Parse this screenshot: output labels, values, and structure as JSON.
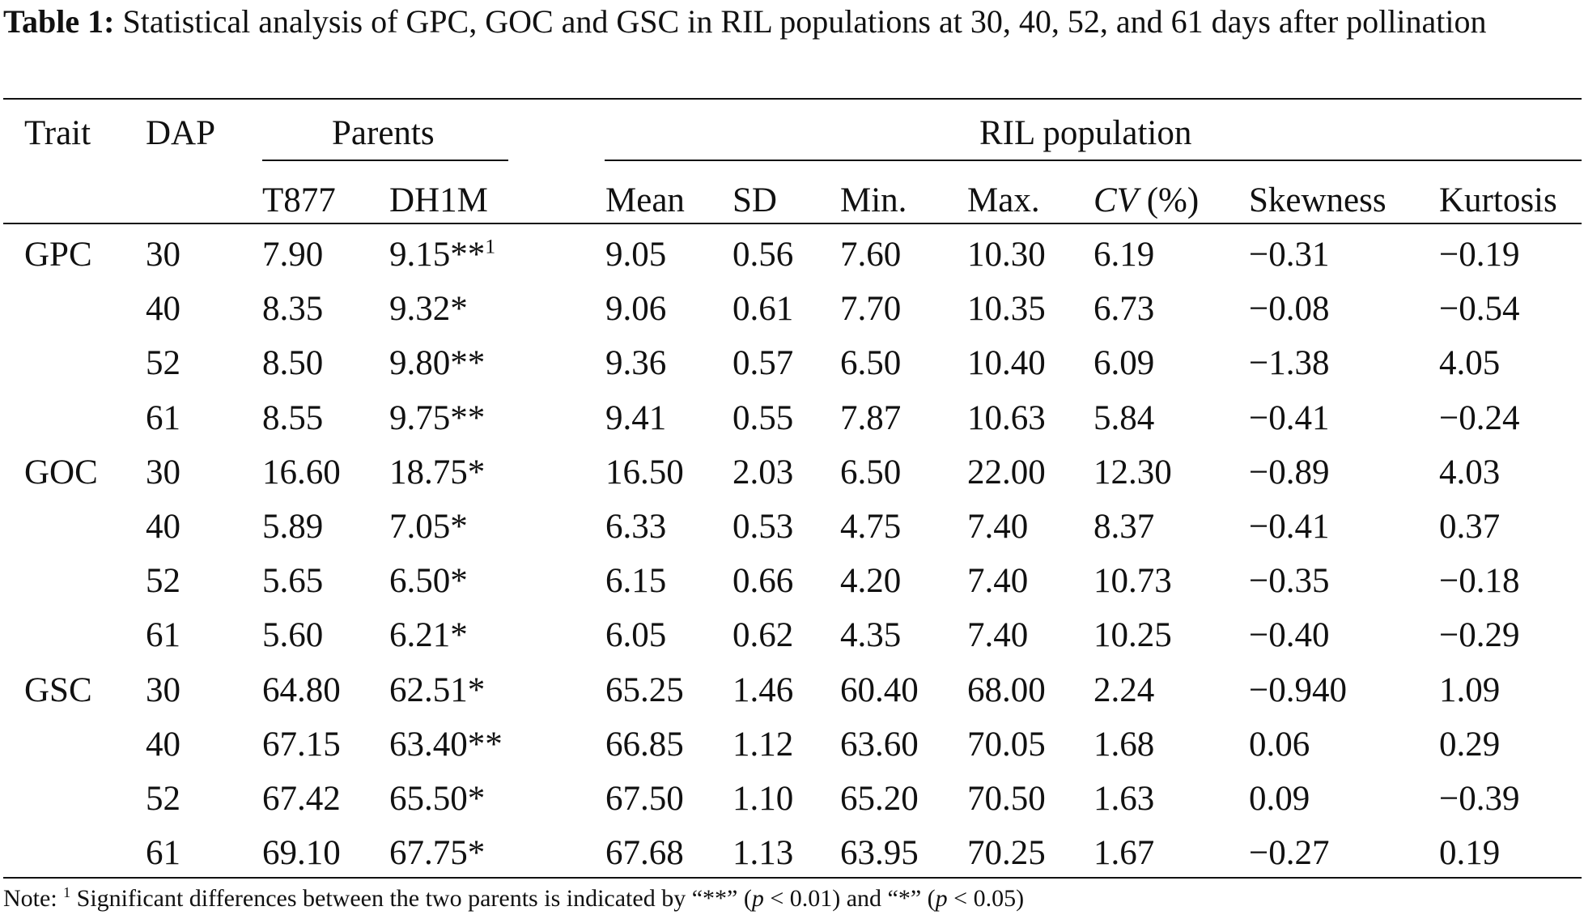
{
  "caption": {
    "label": "Table 1:",
    "text": "Statistical analysis of GPC, GOC and GSC in RIL populations at 30, 40, 52, and 61 days after pollination"
  },
  "header": {
    "trait": "Trait",
    "dap": "DAP",
    "parents": "Parents",
    "ril_population": "RIL population",
    "t877": "T877",
    "dh1m": "DH1M",
    "mean": "Mean",
    "sd": "SD",
    "min": "Min.",
    "max": "Max.",
    "cv_italic": "CV",
    "cv_unit": " (%)",
    "skewness": "Skewness",
    "kurtosis": "Kurtosis"
  },
  "rows": [
    {
      "trait": "GPC",
      "dap": "30",
      "t877": "7.90",
      "dh1m": "9.15**",
      "dh1m_sup": "1",
      "mean": "9.05",
      "sd": "0.56",
      "min": "7.60",
      "max": "10.30",
      "cv": "6.19",
      "skew": "−0.31",
      "kurt": "−0.19"
    },
    {
      "trait": "",
      "dap": "40",
      "t877": "8.35",
      "dh1m": "9.32*",
      "dh1m_sup": "",
      "mean": "9.06",
      "sd": "0.61",
      "min": "7.70",
      "max": "10.35",
      "cv": "6.73",
      "skew": "−0.08",
      "kurt": "−0.54"
    },
    {
      "trait": "",
      "dap": "52",
      "t877": "8.50",
      "dh1m": "9.80**",
      "dh1m_sup": "",
      "mean": "9.36",
      "sd": "0.57",
      "min": "6.50",
      "max": "10.40",
      "cv": "6.09",
      "skew": "−1.38",
      "kurt": "4.05"
    },
    {
      "trait": "",
      "dap": "61",
      "t877": "8.55",
      "dh1m": "9.75**",
      "dh1m_sup": "",
      "mean": "9.41",
      "sd": "0.55",
      "min": "7.87",
      "max": "10.63",
      "cv": "5.84",
      "skew": "−0.41",
      "kurt": "−0.24"
    },
    {
      "trait": "GOC",
      "dap": "30",
      "t877": "16.60",
      "dh1m": "18.75*",
      "dh1m_sup": "",
      "mean": "16.50",
      "sd": "2.03",
      "min": "6.50",
      "max": "22.00",
      "cv": "12.30",
      "skew": "−0.89",
      "kurt": "4.03"
    },
    {
      "trait": "",
      "dap": "40",
      "t877": "5.89",
      "dh1m": "7.05*",
      "dh1m_sup": "",
      "mean": "6.33",
      "sd": "0.53",
      "min": "4.75",
      "max": "7.40",
      "cv": "8.37",
      "skew": "−0.41",
      "kurt": "0.37"
    },
    {
      "trait": "",
      "dap": "52",
      "t877": "5.65",
      "dh1m": "6.50*",
      "dh1m_sup": "",
      "mean": "6.15",
      "sd": "0.66",
      "min": "4.20",
      "max": "7.40",
      "cv": "10.73",
      "skew": "−0.35",
      "kurt": "−0.18"
    },
    {
      "trait": "",
      "dap": "61",
      "t877": "5.60",
      "dh1m": "6.21*",
      "dh1m_sup": "",
      "mean": "6.05",
      "sd": "0.62",
      "min": "4.35",
      "max": "7.40",
      "cv": "10.25",
      "skew": "−0.40",
      "kurt": "−0.29"
    },
    {
      "trait": "GSC",
      "dap": "30",
      "t877": "64.80",
      "dh1m": "62.51*",
      "dh1m_sup": "",
      "mean": "65.25",
      "sd": "1.46",
      "min": "60.40",
      "max": "68.00",
      "cv": "2.24",
      "skew": "−0.940",
      "kurt": "1.09"
    },
    {
      "trait": "",
      "dap": "40",
      "t877": "67.15",
      "dh1m": "63.40**",
      "dh1m_sup": "",
      "mean": "66.85",
      "sd": "1.12",
      "min": "63.60",
      "max": "70.05",
      "cv": "1.68",
      "skew": "0.06",
      "kurt": "0.29"
    },
    {
      "trait": "",
      "dap": "52",
      "t877": "67.42",
      "dh1m": "65.50*",
      "dh1m_sup": "",
      "mean": "67.50",
      "sd": "1.10",
      "min": "65.20",
      "max": "70.50",
      "cv": "1.63",
      "skew": "0.09",
      "kurt": "−0.39"
    },
    {
      "trait": "",
      "dap": "61",
      "t877": "69.10",
      "dh1m": "67.75*",
      "dh1m_sup": "",
      "mean": "67.68",
      "sd": "1.13",
      "min": "63.95",
      "max": "70.25",
      "cv": "1.67",
      "skew": "−0.27",
      "kurt": "0.19"
    }
  ],
  "note": {
    "prefix": "Note: ",
    "sup": "1",
    "part1": " Significant differences between the two parents is indicated by “**” (",
    "p1": "p",
    "part2": " < 0.01) and “*” (",
    "p2": "p",
    "part3": " < 0.05)"
  }
}
